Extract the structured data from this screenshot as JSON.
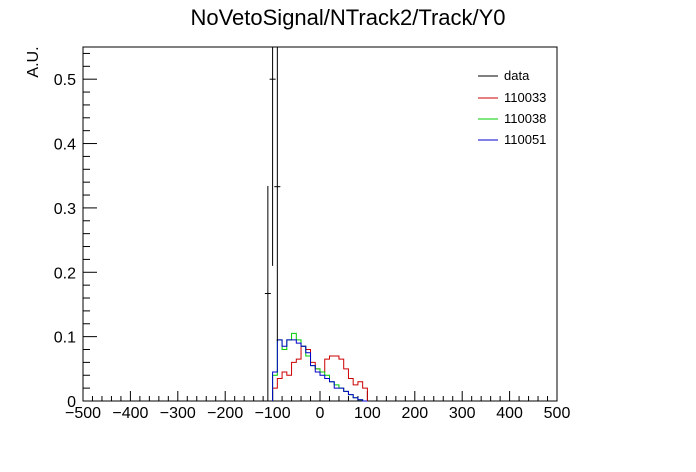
{
  "chart_data": {
    "type": "histogram",
    "title": "NoVetoSignal/NTrack2/Track/Y0",
    "xlabel": "",
    "ylabel": "A.U.",
    "xlim": [
      -500,
      500
    ],
    "ylim": [
      0,
      0.55
    ],
    "x_ticks": [
      "−500",
      "−400",
      "−300",
      "−200",
      "−100",
      "0",
      "100",
      "200",
      "300",
      "400",
      "500"
    ],
    "y_ticks": [
      "0",
      "0.1",
      "0.2",
      "0.3",
      "0.4",
      "0.5"
    ],
    "bin_width": 10,
    "bins_start": -100,
    "legend_position": "top-right",
    "data": {
      "name": "data",
      "color": "#000000",
      "points": [
        {
          "x": -110,
          "y": 0.167,
          "err": 0.167
        },
        {
          "x": -100,
          "y": 0.5,
          "err": 0.29
        },
        {
          "x": -90,
          "y": 0.333,
          "err": 0.24
        }
      ]
    },
    "series": [
      {
        "name": "110033",
        "color": "#cc0000",
        "values": [
          0.02,
          0.035,
          0.045,
          0.04,
          0.06,
          0.065,
          0.085,
          0.08,
          0.06,
          0.05,
          0.045,
          0.065,
          0.07,
          0.07,
          0.065,
          0.05,
          0.035,
          0.025,
          0.03,
          0.02
        ]
      },
      {
        "name": "110038",
        "color": "#00cc00",
        "values": [
          0.04,
          0.095,
          0.08,
          0.095,
          0.105,
          0.095,
          0.085,
          0.07,
          0.055,
          0.05,
          0.045,
          0.04,
          0.03,
          0.025,
          0.02,
          0.015,
          0.01,
          0.005,
          0.002,
          0.0
        ]
      },
      {
        "name": "110051",
        "color": "#0000cc",
        "values": [
          0.045,
          0.095,
          0.085,
          0.095,
          0.095,
          0.09,
          0.085,
          0.075,
          0.055,
          0.045,
          0.04,
          0.035,
          0.03,
          0.02,
          0.02,
          0.015,
          0.01,
          0.005,
          0.002,
          0.0
        ]
      }
    ]
  }
}
